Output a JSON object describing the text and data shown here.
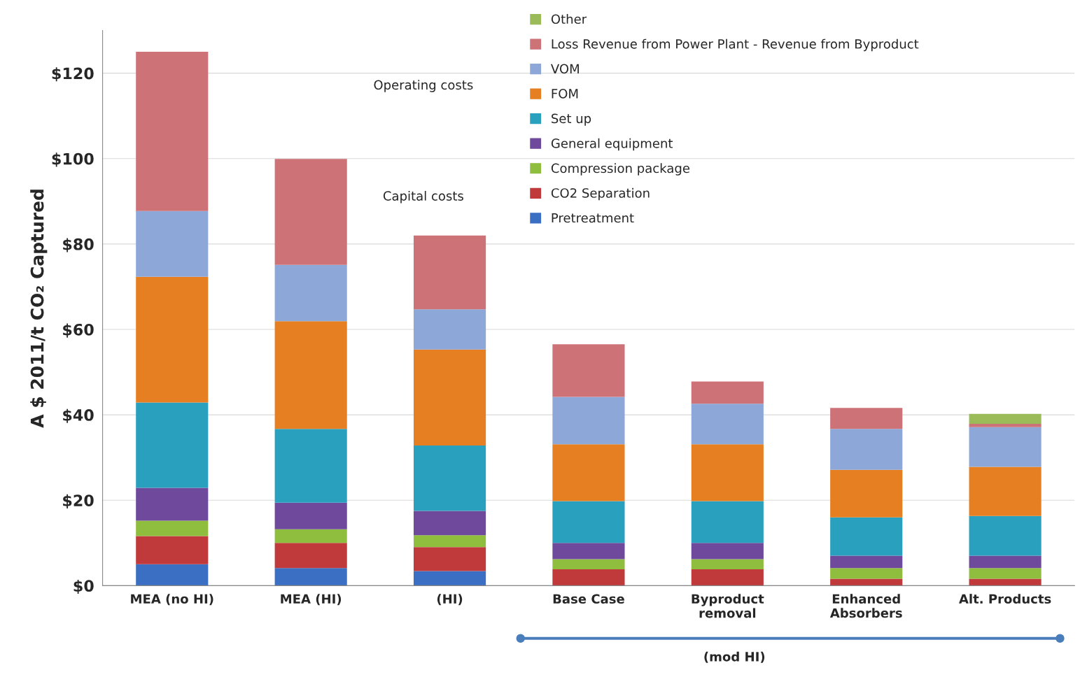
{
  "chart_data": {
    "type": "bar",
    "stacked": true,
    "categories": [
      "MEA (no HI)",
      "MEA (HI)",
      "(HI)",
      "Base Case",
      "Byproduct\nremoval",
      "Enhanced\nAbsorbers",
      "Alt. Products"
    ],
    "ylabel": "A $ 2011/t CO₂ Captured",
    "ylim": [
      0,
      130
    ],
    "yticks": [
      {
        "value": 0,
        "label": "$0"
      },
      {
        "value": 20,
        "label": "$20"
      },
      {
        "value": 40,
        "label": "$40"
      },
      {
        "value": 60,
        "label": "$60"
      },
      {
        "value": 80,
        "label": "$80"
      },
      {
        "value": 100,
        "label": "$100"
      },
      {
        "value": 120,
        "label": "$120"
      }
    ],
    "grid": "y",
    "legend": "top",
    "series": [
      {
        "name": "Pretreatment",
        "color": "#3a6fc4",
        "values": [
          5.0,
          4.1,
          3.4,
          0,
          0,
          0,
          0
        ]
      },
      {
        "name": "CO2 Separation",
        "color": "#c0393b",
        "values": [
          6.6,
          5.9,
          5.6,
          3.8,
          3.8,
          1.6,
          1.6
        ]
      },
      {
        "name": "Compression package",
        "color": "#8fbe3f",
        "values": [
          3.6,
          3.2,
          2.8,
          2.4,
          2.4,
          2.5,
          2.5
        ]
      },
      {
        "name": "General equipment",
        "color": "#6f4a9c",
        "values": [
          7.7,
          6.2,
          5.7,
          3.8,
          3.8,
          2.9,
          2.9
        ]
      },
      {
        "name": "Set up",
        "color": "#2aa0bf",
        "values": [
          20.0,
          17.3,
          15.3,
          9.8,
          9.8,
          9.0,
          9.3
        ]
      },
      {
        "name": "FOM",
        "color": "#e57f22",
        "values": [
          29.4,
          25.2,
          22.5,
          13.3,
          13.3,
          11.1,
          11.5
        ]
      },
      {
        "name": "VOM",
        "color": "#8da8d8",
        "values": [
          15.4,
          13.2,
          9.4,
          11.1,
          9.5,
          9.6,
          9.3
        ]
      },
      {
        "name": "Loss Revenue from Power Plant - Revenue from Byproduct",
        "color": "#cd7378",
        "values": [
          37.3,
          24.8,
          17.3,
          12.3,
          5.2,
          4.9,
          0.8
        ]
      },
      {
        "name": "Other",
        "color": "#9bbb59",
        "values": [
          0,
          0,
          0,
          0,
          0,
          0,
          2.3
        ]
      }
    ],
    "annotations": [
      "Operating costs",
      "Capital costs",
      "(mod HI)"
    ]
  }
}
